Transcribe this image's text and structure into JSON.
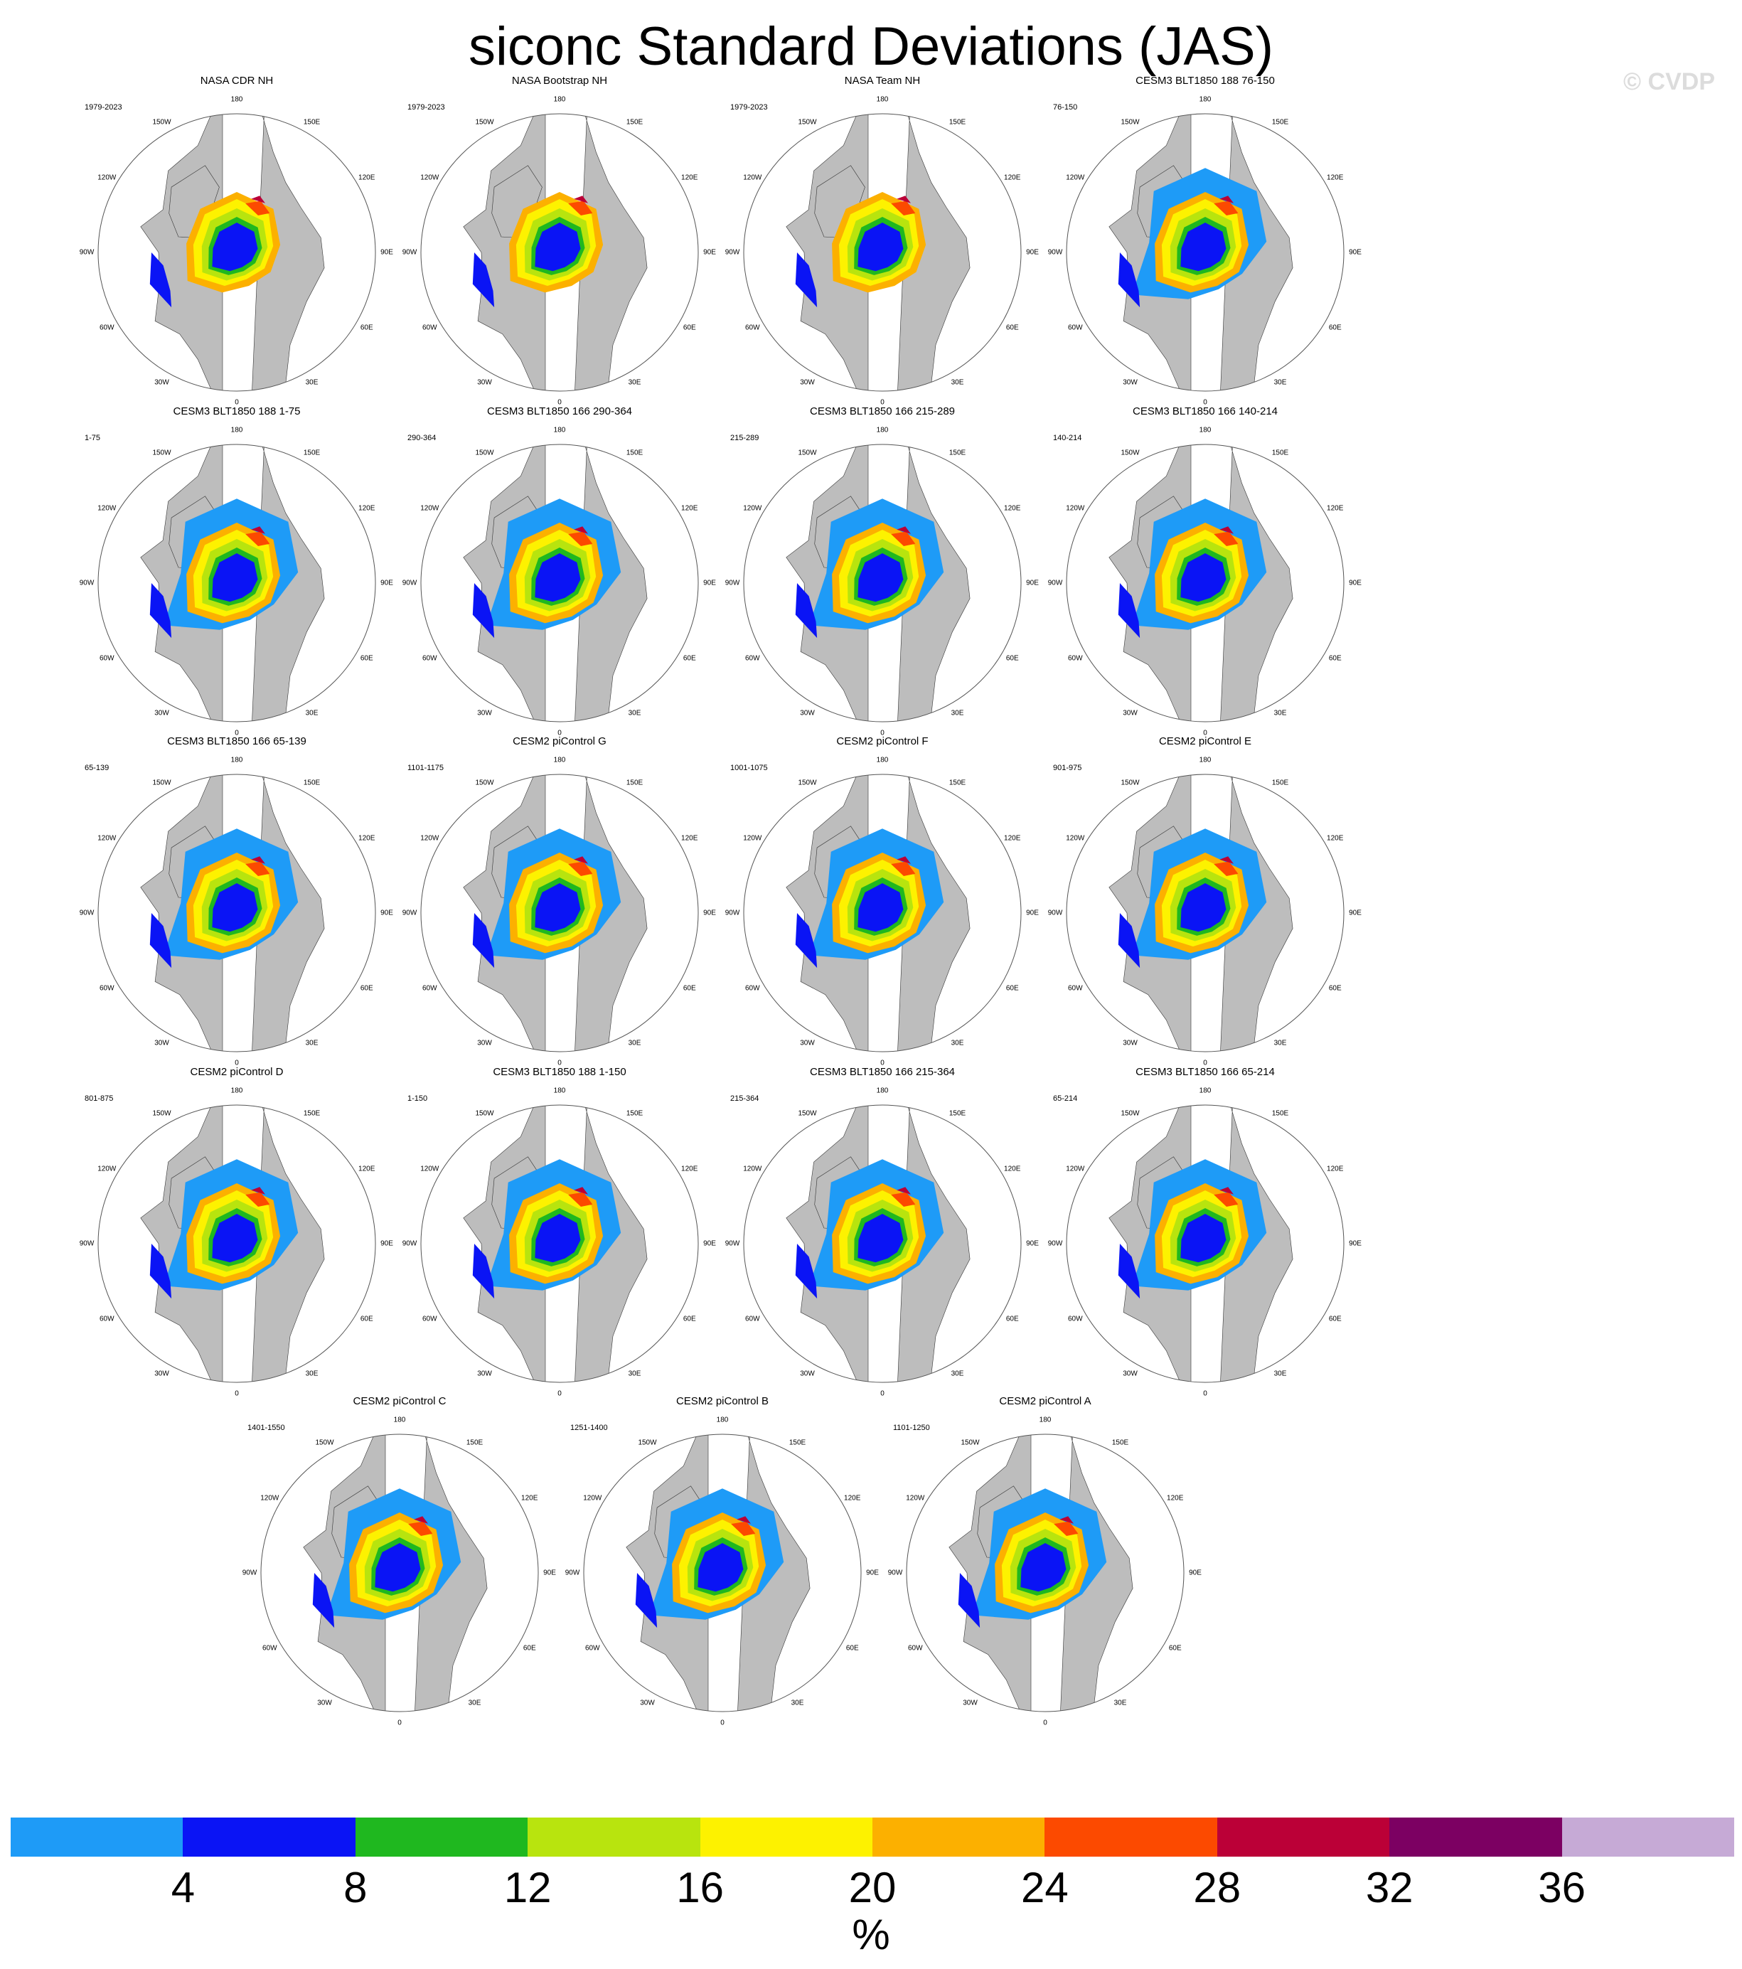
{
  "title": "siconc Standard Deviations (JAS)",
  "watermark": "© CVDP",
  "chart_data": {
    "type": "heatmap",
    "projection": "north-polar-stereographic",
    "variable": "siconc",
    "season": "JAS",
    "longitude_labels": [
      "180",
      "150E",
      "120E",
      "90E",
      "60E",
      "30E",
      "0",
      "30W",
      "60W",
      "90W",
      "120W",
      "150W"
    ],
    "panels": [
      {
        "title": "NASA CDR NH",
        "years": "1979-2023"
      },
      {
        "title": "NASA Bootstrap NH",
        "years": "1979-2023"
      },
      {
        "title": "NASA Team NH",
        "years": "1979-2023"
      },
      {
        "title": "CESM3 BLT1850 188 76-150",
        "years": "76-150"
      },
      {
        "title": "CESM3 BLT1850 188 1-75",
        "years": "1-75"
      },
      {
        "title": "CESM3 BLT1850 166 290-364",
        "years": "290-364"
      },
      {
        "title": "CESM3 BLT1850 166 215-289",
        "years": "215-289"
      },
      {
        "title": "CESM3 BLT1850 166 140-214",
        "years": "140-214"
      },
      {
        "title": "CESM3 BLT1850 166 65-139",
        "years": "65-139"
      },
      {
        "title": "CESM2 piControl G",
        "years": "1101-1175"
      },
      {
        "title": "CESM2 piControl F",
        "years": "1001-1075"
      },
      {
        "title": "CESM2 piControl E",
        "years": "901-975"
      },
      {
        "title": "CESM2 piControl D",
        "years": "801-875"
      },
      {
        "title": "CESM3 BLT1850 188 1-150",
        "years": "1-150"
      },
      {
        "title": "CESM3 BLT1850 166 215-364",
        "years": "215-364"
      },
      {
        "title": "CESM3 BLT1850 166 65-214",
        "years": "65-214"
      },
      {
        "title": "CESM2 piControl C",
        "years": "1401-1550"
      },
      {
        "title": "CESM2 piControl B",
        "years": "1251-1400"
      },
      {
        "title": "CESM2 piControl A",
        "years": "1101-1250"
      }
    ],
    "colorbar": {
      "levels": [
        4,
        8,
        12,
        16,
        20,
        24,
        28,
        32,
        36
      ],
      "labels": [
        "4",
        "8",
        "12",
        "16",
        "20",
        "24",
        "28",
        "32",
        "36"
      ],
      "colors": [
        "#1e9bf7",
        "#0a14f5",
        "#1fb81f",
        "#b8e40e",
        "#fdf200",
        "#fcb000",
        "#fc4a00",
        "#bb0037",
        "#7c0062",
        "#c6aad6"
      ],
      "units": "%"
    }
  }
}
